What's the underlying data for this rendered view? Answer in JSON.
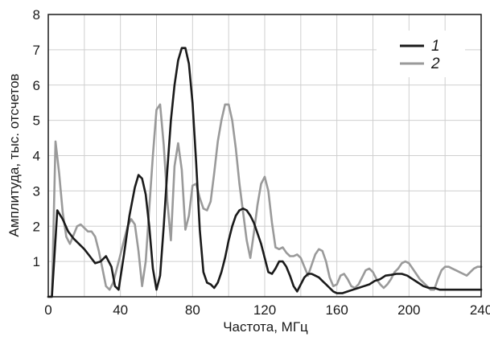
{
  "chart_data": {
    "type": "line",
    "xlabel": "Частота, МГц",
    "ylabel": "Амплитуда, тыс. отсчетов",
    "xlim": [
      0,
      240
    ],
    "ylim": [
      0,
      8
    ],
    "x_ticks": [
      0,
      40,
      80,
      120,
      160,
      200,
      240
    ],
    "y_ticks": [
      1,
      2,
      3,
      4,
      5,
      6,
      7,
      8
    ],
    "x_tick_labels": [
      "0",
      "40",
      "80",
      "120",
      "160",
      "200",
      "240"
    ],
    "y_tick_labels": [
      "1",
      "2",
      "3",
      "4",
      "5",
      "6",
      "7",
      "8"
    ],
    "grid": true,
    "legend_position": "top-right",
    "series": [
      {
        "name": "1",
        "color": "#1a1a1a",
        "x": [
          0,
          2,
          5,
          8,
          11,
          14,
          17,
          20,
          23,
          26,
          29,
          32,
          35,
          37,
          39,
          42,
          45,
          48,
          50,
          52,
          54,
          56,
          58,
          60,
          62,
          64,
          66,
          68,
          70,
          72,
          74,
          76,
          78,
          80,
          82,
          84,
          86,
          88,
          90,
          92,
          94,
          96,
          98,
          100,
          102,
          104,
          106,
          108,
          110,
          112,
          114,
          116,
          118,
          120,
          122,
          124,
          126,
          128,
          130,
          132,
          134,
          136,
          138,
          140,
          142,
          144,
          146,
          148,
          150,
          152,
          154,
          156,
          158,
          160,
          163,
          166,
          169,
          172,
          175,
          178,
          181,
          184,
          187,
          190,
          193,
          196,
          199,
          202,
          205,
          208,
          211,
          214,
          217,
          220,
          223,
          226,
          229,
          232,
          235,
          238,
          240
        ],
        "y": [
          0.0,
          0.0,
          2.45,
          2.2,
          1.85,
          1.65,
          1.5,
          1.35,
          1.15,
          0.95,
          1.0,
          1.15,
          0.85,
          0.3,
          0.2,
          1.2,
          2.3,
          3.1,
          3.45,
          3.35,
          2.9,
          2.0,
          0.8,
          0.2,
          0.6,
          2.0,
          3.6,
          5.0,
          6.0,
          6.7,
          7.05,
          7.05,
          6.6,
          5.5,
          3.8,
          1.9,
          0.7,
          0.4,
          0.35,
          0.25,
          0.4,
          0.7,
          1.1,
          1.6,
          2.0,
          2.3,
          2.45,
          2.5,
          2.45,
          2.3,
          2.1,
          1.8,
          1.5,
          1.1,
          0.7,
          0.65,
          0.8,
          1.0,
          1.0,
          0.85,
          0.6,
          0.3,
          0.15,
          0.35,
          0.55,
          0.65,
          0.65,
          0.6,
          0.55,
          0.45,
          0.35,
          0.25,
          0.15,
          0.1,
          0.1,
          0.15,
          0.2,
          0.25,
          0.3,
          0.35,
          0.45,
          0.5,
          0.6,
          0.62,
          0.65,
          0.65,
          0.6,
          0.5,
          0.4,
          0.3,
          0.25,
          0.25,
          0.2,
          0.2,
          0.2,
          0.2,
          0.2,
          0.2,
          0.2,
          0.2,
          0.2
        ]
      },
      {
        "name": "2",
        "color": "#9a9a9a",
        "x": [
          0,
          2,
          4,
          6,
          8,
          10,
          12,
          14,
          16,
          18,
          20,
          22,
          24,
          26,
          28,
          30,
          32,
          34,
          36,
          38,
          40,
          42,
          44,
          46,
          48,
          50,
          52,
          54,
          56,
          58,
          60,
          62,
          64,
          66,
          68,
          70,
          72,
          74,
          76,
          78,
          80,
          82,
          84,
          86,
          88,
          90,
          92,
          94,
          96,
          98,
          100,
          102,
          104,
          106,
          108,
          110,
          112,
          114,
          116,
          118,
          120,
          122,
          124,
          126,
          128,
          130,
          132,
          134,
          136,
          138,
          140,
          142,
          144,
          146,
          148,
          150,
          152,
          154,
          156,
          158,
          160,
          162,
          164,
          166,
          168,
          170,
          172,
          174,
          176,
          178,
          180,
          182,
          184,
          186,
          188,
          190,
          192,
          194,
          196,
          198,
          200,
          202,
          204,
          206,
          208,
          210,
          212,
          214,
          216,
          218,
          220,
          222,
          224,
          226,
          228,
          230,
          232,
          234,
          236,
          238,
          240
        ],
        "y": [
          0.0,
          0.0,
          4.4,
          3.5,
          2.4,
          1.7,
          1.5,
          1.75,
          2.0,
          2.05,
          1.95,
          1.85,
          1.85,
          1.7,
          1.3,
          0.8,
          0.3,
          0.2,
          0.4,
          0.8,
          1.2,
          1.6,
          2.0,
          2.2,
          2.05,
          1.3,
          0.3,
          1.0,
          2.5,
          4.0,
          5.3,
          5.45,
          4.3,
          2.7,
          1.6,
          3.7,
          4.35,
          3.6,
          1.9,
          2.3,
          3.15,
          3.2,
          2.8,
          2.5,
          2.45,
          2.7,
          3.5,
          4.4,
          5.0,
          5.45,
          5.45,
          5.0,
          4.2,
          3.2,
          2.4,
          1.6,
          1.1,
          1.8,
          2.6,
          3.2,
          3.4,
          3.0,
          2.1,
          1.4,
          1.35,
          1.4,
          1.25,
          1.15,
          1.15,
          1.2,
          1.1,
          0.85,
          0.6,
          0.9,
          1.2,
          1.35,
          1.3,
          1.0,
          0.55,
          0.3,
          0.35,
          0.6,
          0.65,
          0.5,
          0.3,
          0.25,
          0.35,
          0.55,
          0.75,
          0.8,
          0.7,
          0.5,
          0.35,
          0.25,
          0.35,
          0.5,
          0.7,
          0.8,
          0.95,
          1.0,
          0.95,
          0.8,
          0.65,
          0.5,
          0.4,
          0.3,
          0.2,
          0.2,
          0.5,
          0.75,
          0.85,
          0.85,
          0.8,
          0.75,
          0.7,
          0.65,
          0.6,
          0.7,
          0.8,
          0.85,
          0.85
        ]
      }
    ]
  }
}
